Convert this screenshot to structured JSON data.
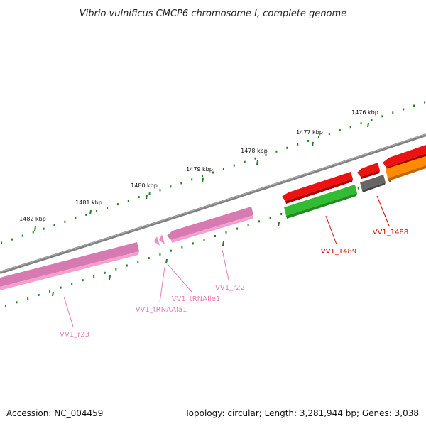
{
  "title": "Vibrio vulnificus CMCP6 chromosome I, complete genome",
  "footer": {
    "accession": "Accession: NC_004459",
    "summary": "Topology: circular; Length: 3,281,944 bp; Genes: 3,038"
  },
  "ticks": [
    "1476 kbp",
    "1477 kbp",
    "1478 kbp",
    "1479 kbp",
    "1480 kbp",
    "1481 kbp",
    "1482 kbp"
  ],
  "colors": {
    "backbone": "#808080",
    "tick": "#1e7d1e",
    "rrna": "#f5a0cc",
    "trna": "#f08cc0",
    "cds_red": "#ee1111",
    "cds_green": "#33bb33",
    "cds_gray": "#666666",
    "cds_orange": "#ff8c00",
    "label_red": "#dd0000",
    "label_pink": "#e87cb8"
  },
  "features": [
    {
      "id": "VV1_1489",
      "type": "CDS"
    },
    {
      "id": "VV1_1488",
      "type": "CDS"
    },
    {
      "id": "VV1_r22",
      "type": "rRNA"
    },
    {
      "id": "VV1_tRNAIle1",
      "type": "tRNA"
    },
    {
      "id": "VV1_tRNAAla1",
      "type": "tRNA"
    },
    {
      "id": "VV1_r23",
      "type": "rRNA"
    }
  ]
}
